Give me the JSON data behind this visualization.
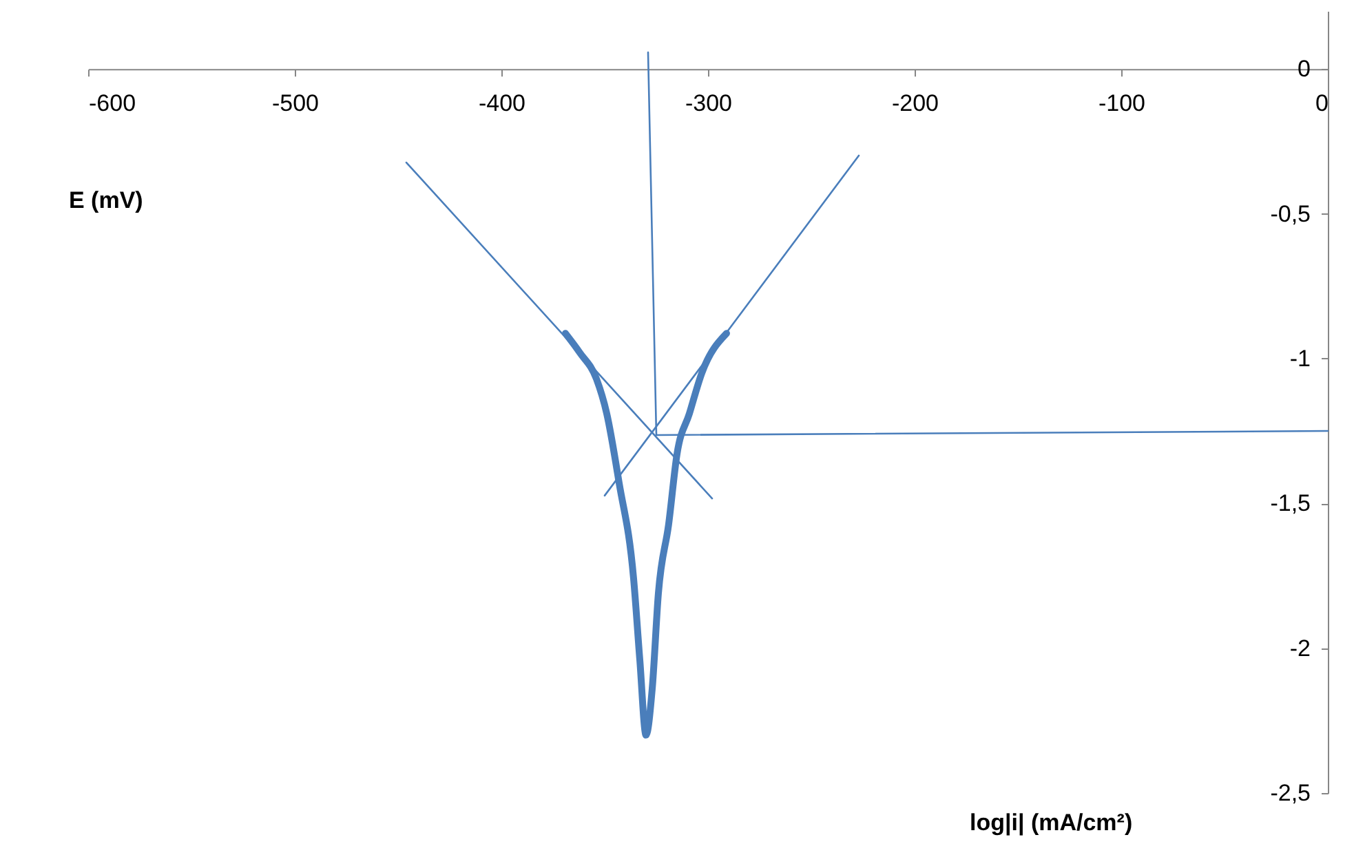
{
  "chart_data": {
    "type": "line",
    "ylabel": "E (mV)",
    "xlabel": "log|i| (mA/cm²)",
    "series": [
      {
        "color": "#4a7ebb",
        "x": [
          -369,
          -362,
          -354,
          -349,
          -343,
          -336,
          -333,
          -330,
          -327,
          -324,
          -319,
          -315,
          -309,
          -303,
          -291
        ],
        "values": [
          -0.913,
          -0.98,
          -1.07,
          -1.19,
          -1.43,
          -1.76,
          -2.04,
          -2.3,
          -2.14,
          -1.81,
          -1.57,
          -1.33,
          -1.19,
          -1.05,
          -0.913
        ]
      },
      {
        "color": "#4a7ebb",
        "x": [
          -446,
          -298
        ],
        "values": [
          -0.323,
          -1.483
        ]
      },
      {
        "color": "#4a7ebb",
        "x": [
          -350,
          -227
        ],
        "values": [
          -1.473,
          -0.299
        ]
      },
      {
        "color": "#4a7ebb",
        "x": [
          -329,
          -325
        ],
        "values": [
          0.057,
          -1.264
        ]
      },
      {
        "color": "#4a7ebb",
        "x": [
          -325,
          0
        ],
        "values": [
          -1.264,
          -1.25
        ]
      }
    ],
    "xlim": [
      -600,
      0
    ],
    "xticks": [
      -600,
      -500,
      -400,
      -300,
      -200,
      -100,
      0
    ],
    "ylim": [
      -2.5,
      0.2
    ],
    "yticks": [
      0,
      {
        "value": -0.5,
        "label": "-0,5"
      },
      -1,
      {
        "value": -1.5,
        "label": "-1,5"
      },
      -2,
      {
        "value": -2.5,
        "label": "-2,5"
      }
    ],
    "grid": false,
    "marker": "none",
    "line_style": "solid"
  }
}
